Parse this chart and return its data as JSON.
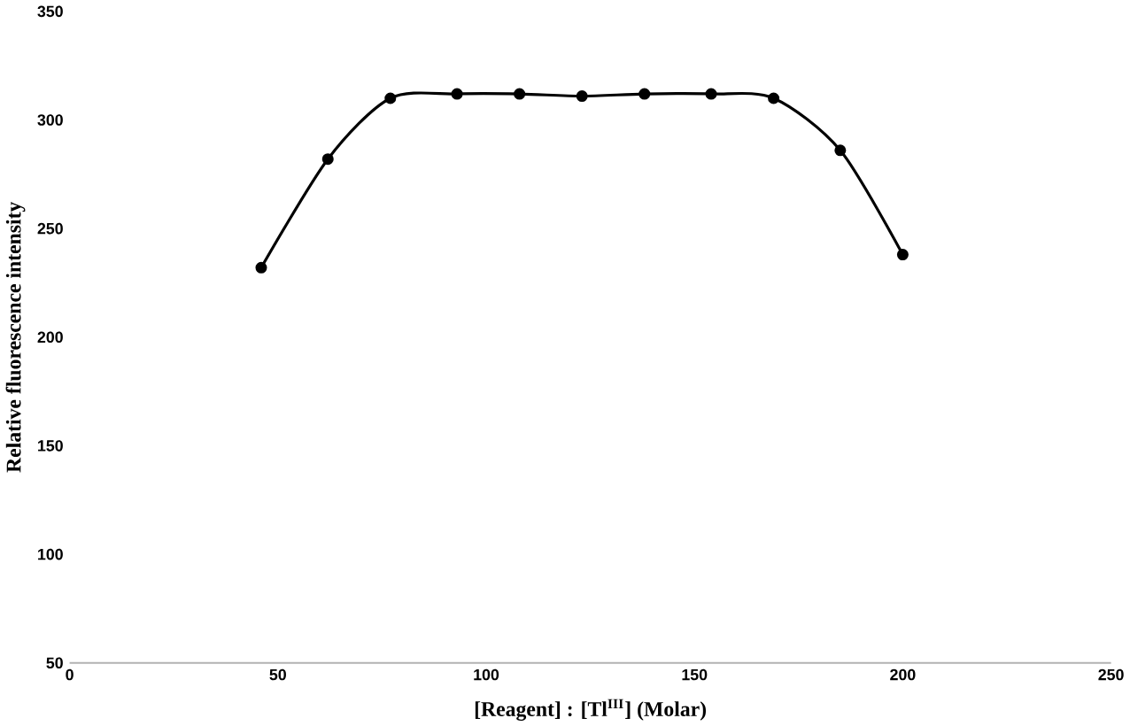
{
  "chart_data": {
    "type": "line",
    "xlabel": "[Reagent] : [Tl$^{III}$] (Molar)",
    "ylabel": "Relative fluorescence intensity",
    "x": [
      46,
      62,
      77,
      93,
      108,
      123,
      138,
      154,
      169,
      185,
      200
    ],
    "series": [
      {
        "color": "#000000",
        "values": [
          232,
          282,
          310,
          312,
          312,
          311,
          312,
          312,
          310,
          286,
          238
        ]
      }
    ],
    "xlim": [
      0,
      250
    ],
    "xticks": [
      0,
      50,
      100,
      150,
      200,
      250
    ],
    "ylim": [
      50,
      350
    ],
    "yticks": [
      50,
      100,
      150,
      200,
      250,
      300,
      350
    ],
    "marker": "circle",
    "line_style": "solid"
  }
}
